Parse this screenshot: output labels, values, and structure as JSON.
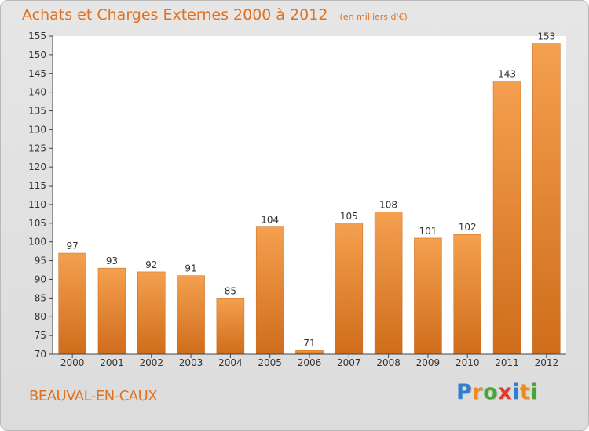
{
  "title": "Achats et Charges Externes 2000 à 2012",
  "unit": "(en milliers d'€)",
  "city": "BEAUVAL-EN-CAUX",
  "logo": {
    "letters": [
      "P",
      "r",
      "o",
      "x",
      "i",
      "t",
      "i"
    ],
    "colors": [
      "#2f7fd1",
      "#f08a1c",
      "#44a832",
      "#e23a2c",
      "#2f7fd1",
      "#f08a1c",
      "#44a832"
    ]
  },
  "colors": {
    "title": "#e0721f",
    "bar_light": "#f4a04f",
    "bar_dark": "#cf6d1c",
    "axis": "#444444",
    "plot_bg": "#ffffff"
  },
  "chart_data": {
    "type": "bar",
    "categories": [
      "2000",
      "2001",
      "2002",
      "2003",
      "2004",
      "2005",
      "2006",
      "2007",
      "2008",
      "2009",
      "2010",
      "2011",
      "2012"
    ],
    "values": [
      97,
      93,
      92,
      91,
      85,
      104,
      71,
      105,
      108,
      101,
      102,
      143,
      153
    ],
    "ylim": [
      70,
      155
    ],
    "yticks": [
      70,
      75,
      80,
      85,
      90,
      95,
      100,
      105,
      110,
      115,
      120,
      125,
      130,
      135,
      140,
      145,
      150,
      155
    ],
    "grid": false
  }
}
